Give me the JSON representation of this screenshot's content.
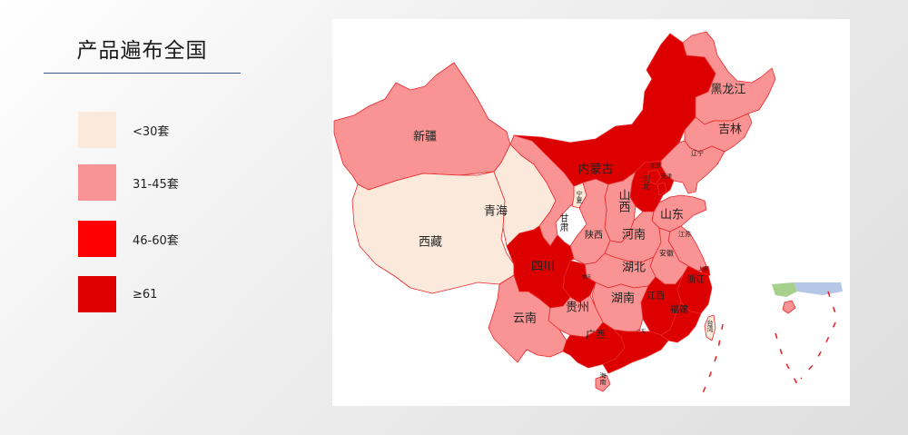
{
  "title": "产品遍布全国",
  "legend": [
    {
      "label": "<30套",
      "color": "#fbe9dc"
    },
    {
      "label": "31-45套",
      "color": "#fa9494"
    },
    {
      "label": "46-60套",
      "color": "#ff0000"
    },
    {
      "label": "≥61",
      "color": "#dc0000"
    }
  ],
  "colors": {
    "border": "#e8282a",
    "sea": "#a8d08d",
    "sea2": "#b4c7e7"
  },
  "provinces": {
    "heilongjiang": {
      "label": "黑龙江",
      "tier": 1
    },
    "jilin": {
      "label": "吉林",
      "tier": 1
    },
    "liaoning": {
      "label": "辽宁",
      "tier": 1
    },
    "neimenggu": {
      "label": "内蒙古",
      "tier": 3
    },
    "xinjiang": {
      "label": "新疆",
      "tier": 1
    },
    "xizang": {
      "label": "西藏",
      "tier": 0
    },
    "qinghai": {
      "label": "青海",
      "tier": 0
    },
    "gansu": {
      "label": "甘肃",
      "tier": 1
    },
    "ningxia": {
      "label": "宁夏",
      "tier": 0
    },
    "shanxi": {
      "label": "山西",
      "tier": 1
    },
    "shaanxi": {
      "label": "陕西",
      "tier": 1
    },
    "hebei": {
      "label": "河北",
      "tier": 3
    },
    "beijing": {
      "label": "北京",
      "tier": 3
    },
    "tianjin": {
      "label": "天津",
      "tier": 3
    },
    "shandong": {
      "label": "山东",
      "tier": 1
    },
    "henan": {
      "label": "河南",
      "tier": 1
    },
    "jiangsu": {
      "label": "江苏",
      "tier": 1
    },
    "anhui": {
      "label": "安徽",
      "tier": 1
    },
    "hubei": {
      "label": "湖北",
      "tier": 1
    },
    "sichuan": {
      "label": "四川",
      "tier": 3
    },
    "chongqing": {
      "label": "重庆",
      "tier": 3
    },
    "zhejiang": {
      "label": "浙江",
      "tier": 3
    },
    "shanghai": {
      "label": "上海",
      "tier": 3
    },
    "jiangxi": {
      "label": "江西",
      "tier": 3
    },
    "hunan": {
      "label": "湖南",
      "tier": 1
    },
    "guizhou": {
      "label": "贵州",
      "tier": 1
    },
    "yunnan": {
      "label": "云南",
      "tier": 1
    },
    "fujian": {
      "label": "福建",
      "tier": 3
    },
    "guangxi": {
      "label": "广西",
      "tier": 3
    },
    "guangdong": {
      "label": "广东",
      "tier": 3
    },
    "hainan": {
      "label": "海南",
      "tier": 1
    },
    "taiwan": {
      "label": "台湾",
      "tier": 0
    }
  }
}
